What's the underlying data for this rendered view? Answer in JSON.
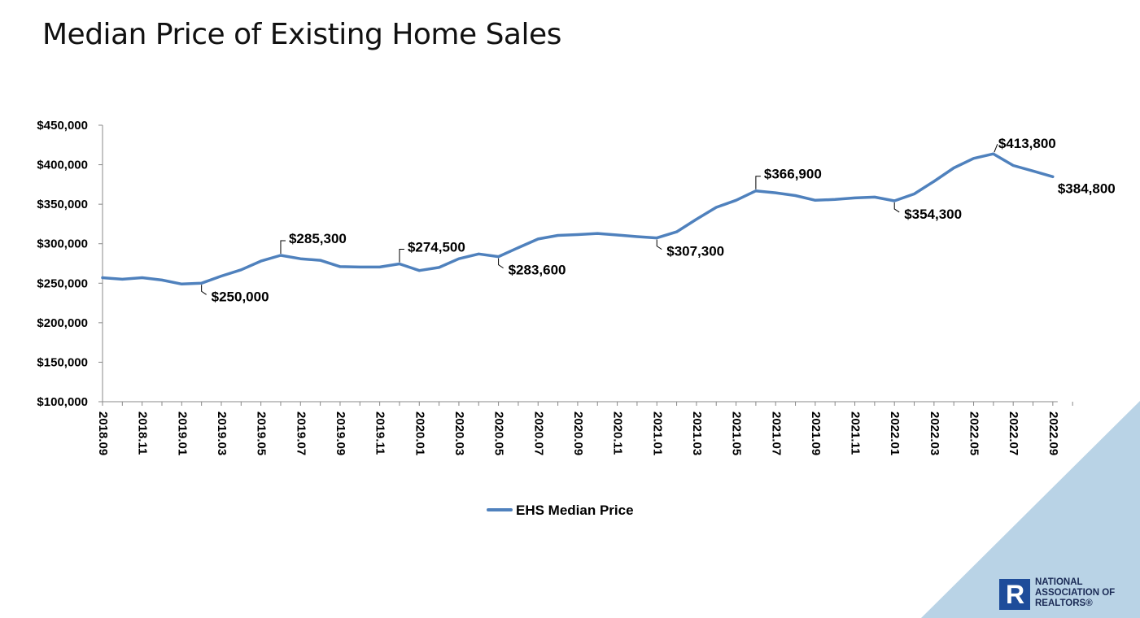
{
  "title": "Median Price of Existing Home Sales",
  "colors": {
    "line": "#4f81bd",
    "corner": "#b9d3e6",
    "brand": "#1e4c9a"
  },
  "logo": {
    "mark": "R",
    "line1": "NATIONAL",
    "line2": "ASSOCIATION OF",
    "line3": "REALTORS®"
  },
  "chart_data": {
    "type": "line",
    "title": "Median Price of Existing Home Sales",
    "xlabel": "",
    "ylabel": "",
    "ylim": [
      100000,
      450000
    ],
    "yticks": [
      100000,
      150000,
      200000,
      250000,
      300000,
      350000,
      400000,
      450000
    ],
    "ytick_labels": [
      "$100,000",
      "$150,000",
      "$200,000",
      "$250,000",
      "$300,000",
      "$350,000",
      "$400,000",
      "$450,000"
    ],
    "x": [
      "2018.09",
      "2018.10",
      "2018.11",
      "2018.12",
      "2019.01",
      "2019.02",
      "2019.03",
      "2019.04",
      "2019.05",
      "2019.06",
      "2019.07",
      "2019.08",
      "2019.09",
      "2019.10",
      "2019.11",
      "2019.12",
      "2020.01",
      "2020.02",
      "2020.03",
      "2020.04",
      "2020.05",
      "2020.06",
      "2020.07",
      "2020.08",
      "2020.09",
      "2020.10",
      "2020.11",
      "2020.12",
      "2021.01",
      "2021.02",
      "2021.03",
      "2021.04",
      "2021.05",
      "2021.06",
      "2021.07",
      "2021.08",
      "2021.09",
      "2021.10",
      "2021.11",
      "2021.12",
      "2022.01",
      "2022.02",
      "2022.03",
      "2022.04",
      "2022.05",
      "2022.06",
      "2022.07",
      "2022.08",
      "2022.09"
    ],
    "xtick_labels": [
      "2018.09",
      "2018.11",
      "2019.01",
      "2019.03",
      "2019.05",
      "2019.07",
      "2019.09",
      "2019.11",
      "2020.01",
      "2020.03",
      "2020.05",
      "2020.07",
      "2020.09",
      "2020.11",
      "2021.01",
      "2021.03",
      "2021.05",
      "2021.07",
      "2021.09",
      "2021.11",
      "2022.01",
      "2022.03",
      "2022.05",
      "2022.07",
      "2022.09"
    ],
    "series": [
      {
        "name": "EHS Median Price",
        "values": [
          257000,
          255000,
          257000,
          254000,
          249000,
          250000,
          259000,
          267000,
          278000,
          285300,
          281000,
          279000,
          271000,
          270500,
          270500,
          274500,
          266000,
          270000,
          281000,
          287000,
          283600,
          295000,
          306000,
          310500,
          311500,
          313000,
          311000,
          309000,
          307300,
          315000,
          331000,
          346000,
          355000,
          366900,
          364500,
          361000,
          355000,
          356000,
          358000,
          359000,
          354300,
          363000,
          379000,
          396000,
          408000,
          413800,
          399000,
          392000,
          384800
        ]
      }
    ],
    "annotations": [
      {
        "label": "$250,000",
        "x": "2019.02",
        "value": 250000,
        "dir": "below"
      },
      {
        "label": "$285,300",
        "x": "2019.06",
        "value": 285300,
        "dir": "above"
      },
      {
        "label": "$274,500",
        "x": "2019.12",
        "value": 274500,
        "dir": "above"
      },
      {
        "label": "$283,600",
        "x": "2020.05",
        "value": 283600,
        "dir": "below"
      },
      {
        "label": "$307,300",
        "x": "2021.01",
        "value": 307300,
        "dir": "below"
      },
      {
        "label": "$366,900",
        "x": "2021.06",
        "value": 366900,
        "dir": "above"
      },
      {
        "label": "$354,300",
        "x": "2022.01",
        "value": 354300,
        "dir": "below"
      },
      {
        "label": "$413,800",
        "x": "2022.06",
        "value": 413800,
        "dir": "above-right"
      },
      {
        "label": "$384,800",
        "x": "2022.09",
        "value": 384800,
        "dir": "below-right"
      }
    ],
    "grid": false,
    "legend_position": "bottom"
  }
}
